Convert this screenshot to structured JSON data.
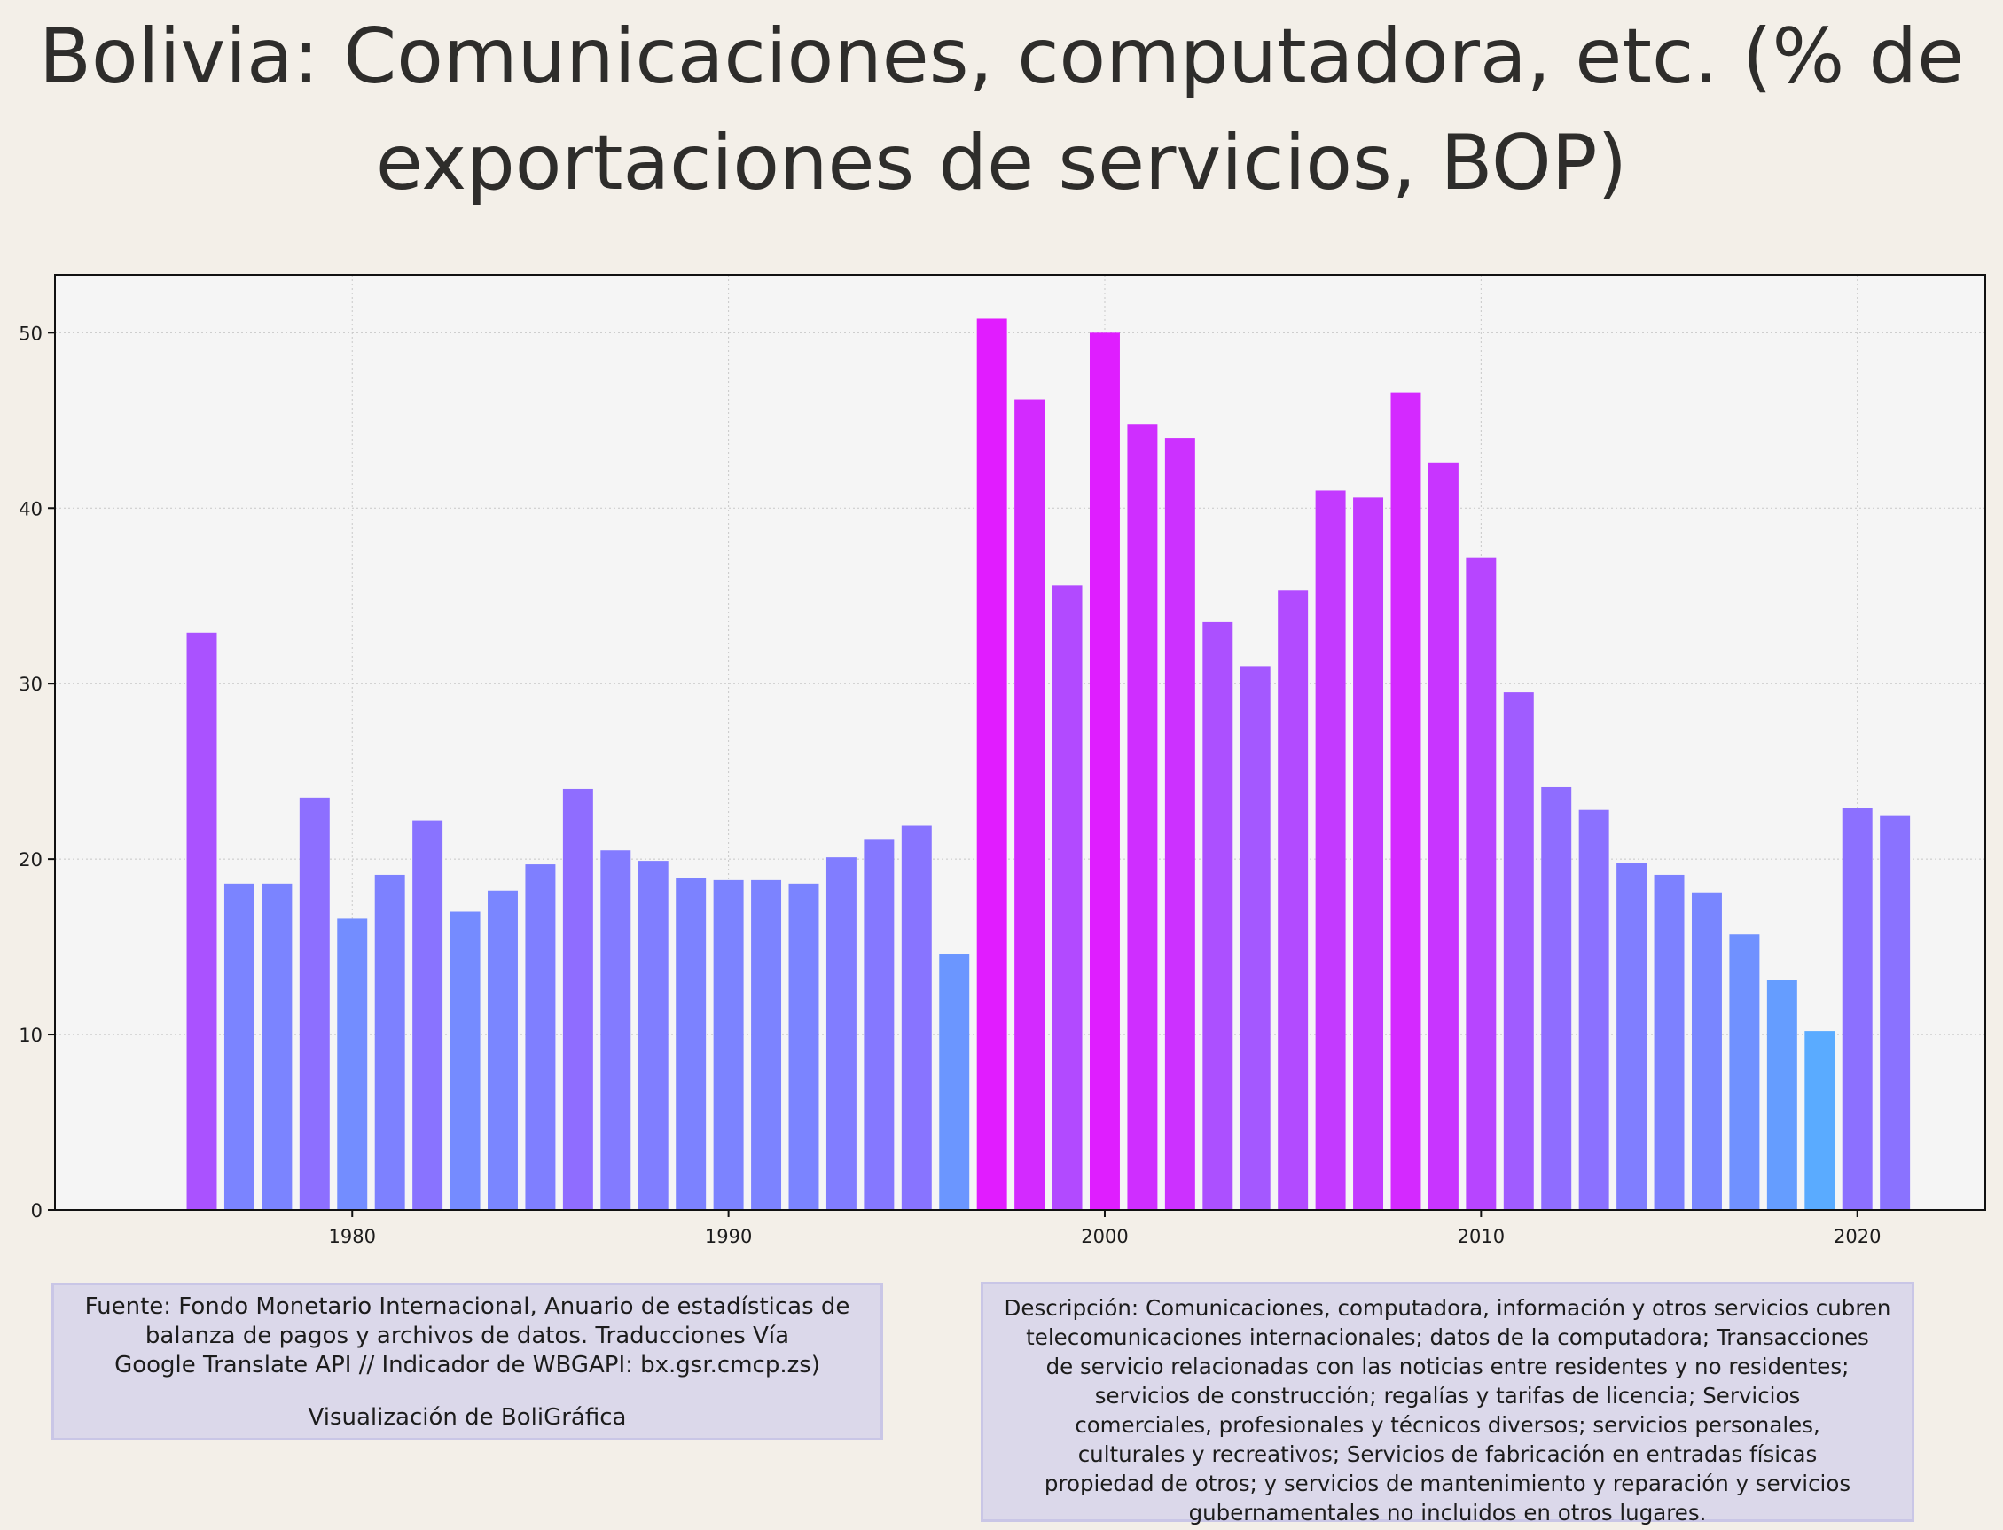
{
  "title": "Bolivia:  Comunicaciones, computadora, etc. (% de exportaciones de servicios, BOP)",
  "colors": {
    "background": "#f3efe8",
    "plot_background": "#f5f5f5",
    "bar_low": "#5aabff",
    "bar_mid": "#8a72ff",
    "bar_high": "#e11cff",
    "box_fill": "#dbd8ea",
    "box_border": "#c9c6e6"
  },
  "chart_data": {
    "type": "bar",
    "title": "Bolivia:  Comunicaciones, computadora, etc. (% de exportaciones de servicios, BOP)",
    "xlabel": "",
    "ylabel": "",
    "x": [
      1976,
      1977,
      1978,
      1979,
      1980,
      1981,
      1982,
      1983,
      1984,
      1985,
      1986,
      1987,
      1988,
      1989,
      1990,
      1991,
      1992,
      1993,
      1994,
      1995,
      1996,
      1997,
      1998,
      1999,
      2000,
      2001,
      2002,
      2003,
      2004,
      2005,
      2006,
      2007,
      2008,
      2009,
      2010,
      2011,
      2012,
      2013,
      2014,
      2015,
      2016,
      2017,
      2018,
      2019,
      2020,
      2021
    ],
    "values": [
      32.9,
      18.6,
      18.6,
      23.5,
      16.6,
      19.1,
      22.2,
      17.0,
      18.2,
      19.7,
      24.0,
      20.5,
      19.9,
      18.9,
      18.8,
      18.8,
      18.6,
      20.1,
      21.1,
      21.9,
      14.6,
      50.8,
      46.2,
      35.6,
      50.0,
      44.8,
      44.0,
      33.5,
      31.0,
      35.3,
      41.0,
      40.6,
      46.6,
      42.6,
      37.2,
      29.5,
      24.1,
      22.8,
      19.8,
      19.1,
      18.1,
      15.7,
      13.1,
      10.2,
      22.9,
      22.5
    ],
    "xlim": [
      1972.9,
      1973.9
    ],
    "xticks": [
      1980,
      1990,
      2000,
      2010,
      2020
    ],
    "ylim": [
      0,
      53.3
    ],
    "yticks": [
      0,
      10,
      20,
      30,
      40,
      50
    ],
    "grid": true,
    "legend": "none"
  },
  "source": {
    "line1": "Fuente: Fondo Monetario Internacional, Anuario de estadísticas de",
    "line2": "balanza de pagos y archivos de datos. Traducciones Vía",
    "line3": "Google Translate API // Indicador de WBGAPI: bx.gsr.cmcp.zs)",
    "credit": "Visualización de BoliGráfica"
  },
  "description": {
    "lines": [
      "Descripción: Comunicaciones, computadora, información y otros servicios cubren",
      "telecomunicaciones internacionales; datos de la computadora; Transacciones",
      "de servicio relacionadas con las noticias entre residentes y no residentes;",
      "servicios de construcción; regalías y tarifas de licencia; Servicios",
      "comerciales, profesionales y técnicos diversos; servicios personales,",
      "culturales y recreativos; Servicios de fabricación en entradas físicas",
      "propiedad de otros; y servicios de mantenimiento y reparación y servicios",
      "gubernamentales no incluidos en otros lugares."
    ]
  }
}
